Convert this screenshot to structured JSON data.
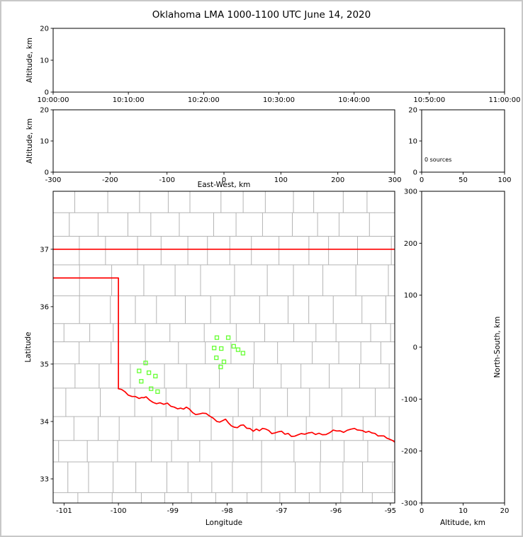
{
  "title": "Oklahoma LMA 1000-1100 UTC June 14, 2020",
  "colors": {
    "state_border": "#ff0000",
    "county_line": "#b4b4b4",
    "station_marker": "#66ff33",
    "axis": "#000000",
    "frame": "#c8c8c8",
    "background": "#ffffff"
  },
  "chart_data": [
    {
      "id": "time_height",
      "type": "scatter",
      "xlabel": "",
      "ylabel": "Altitude, km",
      "xticks": [
        "10:00:00",
        "10:10:00",
        "10:20:00",
        "10:30:00",
        "10:40:00",
        "10:50:00",
        "11:00:00"
      ],
      "xlim": [
        0,
        6
      ],
      "ylim": [
        0,
        20
      ],
      "yticks": [
        0,
        10,
        20
      ],
      "points": []
    },
    {
      "id": "east_west_height",
      "type": "scatter",
      "xlabel": "East-West, km",
      "ylabel": "Altitude, km",
      "xlim": [
        -300,
        300
      ],
      "xticks": [
        -300,
        -200,
        -100,
        0,
        100,
        200,
        300
      ],
      "ylim": [
        0,
        20
      ],
      "yticks": [
        0,
        10,
        20
      ],
      "points": []
    },
    {
      "id": "source_count_histogram",
      "type": "line",
      "annotation": "0 sources",
      "xlim": [
        0,
        100
      ],
      "xticks": [
        0,
        50,
        100
      ],
      "ylim": [
        0,
        20
      ],
      "yticks": [
        0,
        10,
        20
      ],
      "points": []
    },
    {
      "id": "plan_view_map",
      "type": "scatter",
      "xlabel": "Longitude",
      "ylabel": "Latitude",
      "xlim": [
        -101.2,
        -94.92
      ],
      "xticks": [
        -101,
        -100,
        -99,
        -98,
        -97,
        -96,
        -95
      ],
      "ylim": [
        32.58,
        38.01
      ],
      "yticks": [
        33,
        34,
        35,
        36,
        37
      ],
      "stations": [
        [
          -98.19,
          35.46
        ],
        [
          -97.98,
          35.46
        ],
        [
          -98.24,
          35.28
        ],
        [
          -98.11,
          35.27
        ],
        [
          -97.88,
          35.31
        ],
        [
          -97.8,
          35.25
        ],
        [
          -98.2,
          35.11
        ],
        [
          -98.06,
          35.04
        ],
        [
          -97.71,
          35.19
        ],
        [
          -98.12,
          34.95
        ],
        [
          -99.5,
          35.02
        ],
        [
          -99.62,
          34.88
        ],
        [
          -99.44,
          34.85
        ],
        [
          -99.32,
          34.79
        ],
        [
          -99.58,
          34.7
        ],
        [
          -99.4,
          34.57
        ],
        [
          -99.28,
          34.52
        ]
      ],
      "state_border": {
        "kansas_line": [
          [
            -101.2,
            37.0
          ],
          [
            -94.92,
            37.0
          ]
        ],
        "panhandle": [
          [
            -101.2,
            36.5
          ],
          [
            -100.0,
            36.5
          ],
          [
            -100.0,
            34.57
          ]
        ],
        "red_river": [
          [
            -100.0,
            34.57
          ],
          [
            -99.82,
            34.46
          ],
          [
            -99.62,
            34.4
          ],
          [
            -99.49,
            34.43
          ],
          [
            -99.3,
            34.31
          ],
          [
            -99.1,
            34.32
          ],
          [
            -98.91,
            34.22
          ],
          [
            -98.75,
            34.25
          ],
          [
            -98.58,
            34.12
          ],
          [
            -98.39,
            34.14
          ],
          [
            -98.19,
            34.0
          ],
          [
            -98.03,
            34.04
          ],
          [
            -97.87,
            33.9
          ],
          [
            -97.7,
            33.94
          ],
          [
            -97.52,
            33.83
          ],
          [
            -97.35,
            33.88
          ],
          [
            -97.18,
            33.79
          ],
          [
            -97.0,
            33.83
          ],
          [
            -96.82,
            33.74
          ],
          [
            -96.64,
            33.79
          ],
          [
            -96.44,
            33.81
          ],
          [
            -96.25,
            33.77
          ],
          [
            -96.05,
            33.85
          ],
          [
            -95.86,
            33.81
          ],
          [
            -95.66,
            33.88
          ],
          [
            -95.51,
            33.84
          ],
          [
            -95.34,
            33.8
          ],
          [
            -95.17,
            33.75
          ],
          [
            -95.01,
            33.69
          ],
          [
            -94.92,
            33.64
          ]
        ]
      }
    },
    {
      "id": "north_south_height",
      "type": "scatter",
      "xlabel": "Altitude, km",
      "ylabel": "North-South, km",
      "xlim": [
        0,
        20
      ],
      "xticks": [
        0,
        10,
        20
      ],
      "ylim": [
        -300,
        300
      ],
      "yticks": [
        300,
        200,
        100,
        0,
        -100,
        -200,
        -300
      ],
      "points": []
    }
  ]
}
